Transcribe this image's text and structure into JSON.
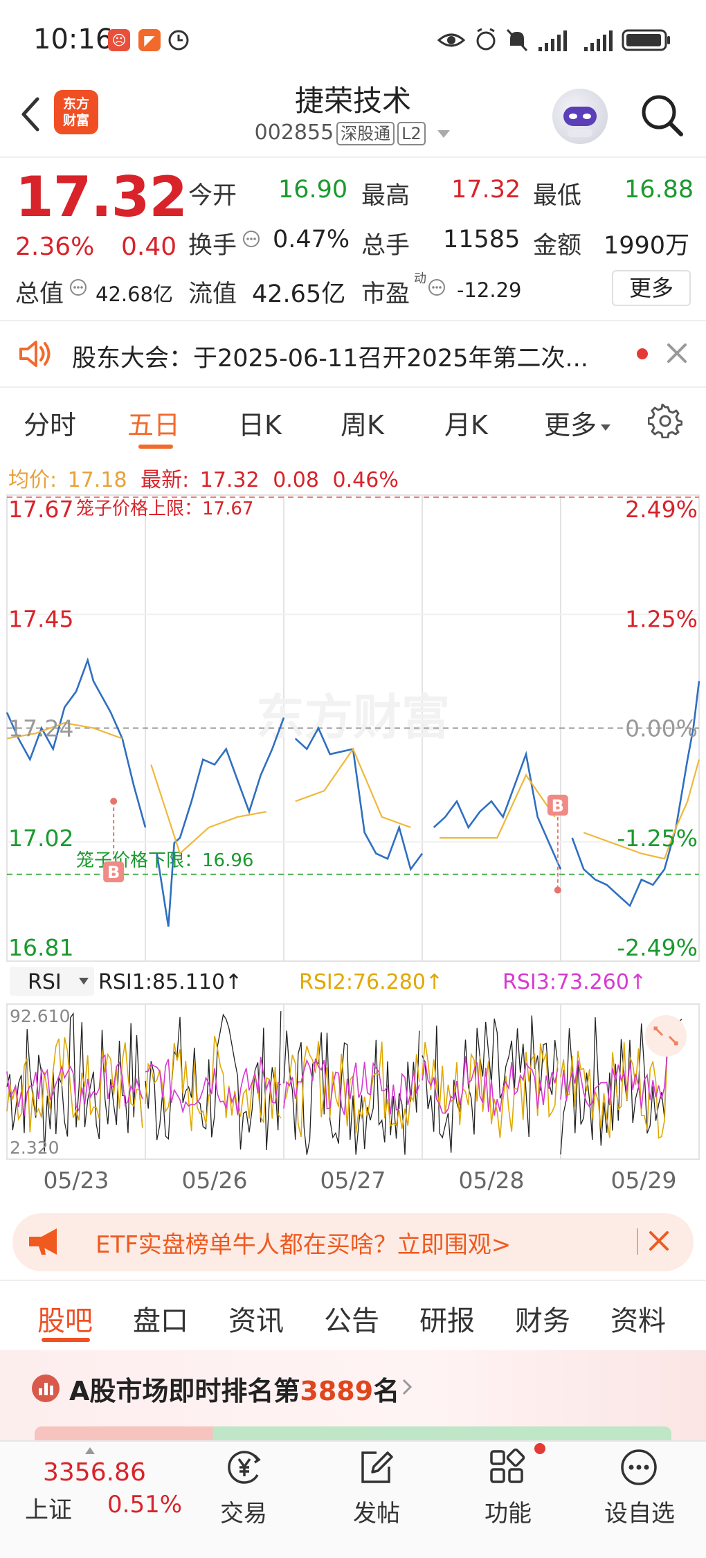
{
  "status_bar": {
    "time": "10:16",
    "icons": [
      "app-red-icon",
      "app-orange-icon",
      "app-clock-icon",
      "eye-icon",
      "alarm-icon",
      "mute-icon",
      "signal-icon",
      "signal2-icon",
      "battery-icon"
    ]
  },
  "header": {
    "brand_logo_line1": "东方",
    "brand_logo_line2": "财富",
    "stock_name": "捷荣技术",
    "stock_code": "002855",
    "tag_connect": "深股通",
    "tag_level": "L2"
  },
  "quote": {
    "price": "17.32",
    "change_pct": "2.36%",
    "change_amt": "0.40",
    "open_label": "今开",
    "open_value": "16.90",
    "high_label": "最高",
    "high_value": "17.32",
    "low_label": "最低",
    "low_value": "16.88",
    "turnover_label": "换手",
    "turnover_value": "0.47%",
    "volume_label": "总手",
    "volume_value": "11585",
    "amount_label": "金额",
    "amount_value": "1990万",
    "total_mv_label": "总值",
    "total_mv_value": "42.68亿",
    "float_mv_label": "流值",
    "float_mv_value": "42.65亿",
    "pe_label": "市盈",
    "pe_superscript": "动",
    "pe_value": "-12.29",
    "more_button": "更多"
  },
  "notice": {
    "text": "股东大会：于2025-06-11召开2025年第二次..."
  },
  "chart_tabs": [
    {
      "label": "分时"
    },
    {
      "label": "五日"
    },
    {
      "label": "日K"
    },
    {
      "label": "周K"
    },
    {
      "label": "月K"
    },
    {
      "label": "更多"
    }
  ],
  "avg_line": {
    "avg_label": "均价:",
    "avg_value": "17.18",
    "latest_label": "最新:",
    "latest_value": "17.32",
    "change": "0.08",
    "change_pct": "0.46%"
  },
  "chart_data": [
    {
      "type": "line",
      "title": "五日分时",
      "ylim": [
        16.81,
        17.67
      ],
      "y_ticks_left": [
        "17.67",
        "17.45",
        "17.24",
        "17.02",
        "16.81"
      ],
      "y_ticks_right": [
        "2.49%",
        "1.25%",
        "0.00%",
        "-1.25%",
        "-2.49%"
      ],
      "upper_limit_label": "笼子价格上限：17.67",
      "lower_limit_label": "笼子价格下限：16.96",
      "prev_close": 17.24,
      "watermark": "东方财富",
      "days": [
        "05/23",
        "05/26",
        "05/27",
        "05/28",
        "05/29"
      ],
      "series": [
        {
          "name": "price",
          "color": "#2f6fc0",
          "points": [
            [
              0,
              17.27
            ],
            [
              2,
              17.22
            ],
            [
              4,
              17.18
            ],
            [
              6,
              17.24
            ],
            [
              8,
              17.2
            ],
            [
              10,
              17.28
            ],
            [
              12,
              17.31
            ],
            [
              14,
              17.37
            ],
            [
              15,
              17.33
            ],
            [
              16,
              17.31
            ],
            [
              18,
              17.27
            ],
            [
              20,
              17.22
            ],
            [
              22,
              17.13
            ],
            [
              24,
              17.05
            ],
            [
              26,
              17.0
            ],
            [
              27,
              16.93
            ],
            [
              28,
              16.86
            ],
            [
              29,
              17.02
            ],
            [
              30,
              17.03
            ],
            [
              32,
              17.1
            ],
            [
              34,
              17.18
            ],
            [
              36,
              17.17
            ],
            [
              38,
              17.2
            ],
            [
              40,
              17.14
            ],
            [
              42,
              17.08
            ],
            [
              44,
              17.15
            ],
            [
              46,
              17.2
            ],
            [
              48,
              17.26
            ],
            [
              50,
              17.22
            ],
            [
              52,
              17.2
            ],
            [
              54,
              17.24
            ],
            [
              56,
              17.19
            ],
            [
              60,
              17.2
            ],
            [
              62,
              17.04
            ],
            [
              64,
              17.0
            ],
            [
              66,
              16.99
            ],
            [
              68,
              17.05
            ],
            [
              70,
              16.97
            ],
            [
              72,
              17.0
            ],
            [
              74,
              17.05
            ],
            [
              76,
              17.07
            ],
            [
              78,
              17.1
            ],
            [
              80,
              17.05
            ],
            [
              82,
              17.08
            ],
            [
              84,
              17.1
            ],
            [
              86,
              17.07
            ],
            [
              90,
              17.19
            ],
            [
              92,
              17.07
            ],
            [
              94,
              17.02
            ],
            [
              96,
              16.97
            ],
            [
              98,
              17.03
            ],
            [
              100,
              16.97
            ],
            [
              102,
              16.95
            ],
            [
              104,
              16.94
            ],
            [
              106,
              16.92
            ],
            [
              108,
              16.9
            ],
            [
              110,
              16.95
            ],
            [
              112,
              16.94
            ],
            [
              114,
              16.97
            ],
            [
              116,
              17.05
            ],
            [
              118,
              17.18
            ],
            [
              119,
              17.24
            ],
            [
              120,
              17.33
            ]
          ]
        },
        {
          "name": "avg",
          "color": "#f0b73a",
          "points": [
            [
              0,
              17.22
            ],
            [
              5,
              17.23
            ],
            [
              10,
              17.25
            ],
            [
              15,
              17.24
            ],
            [
              20,
              17.22
            ],
            [
              25,
              17.17
            ],
            [
              30,
              17.0
            ],
            [
              35,
              17.05
            ],
            [
              40,
              17.07
            ],
            [
              45,
              17.08
            ],
            [
              50,
              17.1
            ],
            [
              55,
              17.12
            ],
            [
              60,
              17.2
            ],
            [
              65,
              17.07
            ],
            [
              70,
              17.05
            ],
            [
              75,
              17.03
            ],
            [
              80,
              17.03
            ],
            [
              85,
              17.03
            ],
            [
              90,
              17.15
            ],
            [
              95,
              17.07
            ],
            [
              100,
              17.04
            ],
            [
              105,
              17.02
            ],
            [
              110,
              17.0
            ],
            [
              114,
              16.99
            ],
            [
              116,
              17.05
            ],
            [
              118,
              17.1
            ],
            [
              120,
              17.18
            ]
          ]
        }
      ],
      "annotations": [
        {
          "label": "B",
          "day_index": 0
        },
        {
          "label": "B",
          "day_index": 3
        }
      ]
    },
    {
      "type": "line",
      "title": "RSI",
      "indicator_select": "RSI",
      "ylim": [
        2.32,
        92.61
      ],
      "y_ticks": [
        "92.610",
        "2.320"
      ],
      "series": [
        {
          "name": "RSI1",
          "label": "RSI1:85.110↑",
          "color": "#222222",
          "last": 85.11
        },
        {
          "name": "RSI2",
          "label": "RSI2:76.280↑",
          "color": "#e0a800",
          "last": 76.28
        },
        {
          "name": "RSI3",
          "label": "RSI3:73.260↑",
          "color": "#d63ad0",
          "last": 73.26
        }
      ]
    }
  ],
  "etf_banner": {
    "text": "ETF实盘榜单牛人都在买啥？立即围观>"
  },
  "bottom_tabs": [
    {
      "label": "股吧"
    },
    {
      "label": "盘口"
    },
    {
      "label": "资讯"
    },
    {
      "label": "公告"
    },
    {
      "label": "研报"
    },
    {
      "label": "财务"
    },
    {
      "label": "资料"
    }
  ],
  "rank": {
    "prefix": "A股市场即时排名第",
    "number": "3889",
    "suffix": "名"
  },
  "bottom_nav": {
    "index_value": "3356.86",
    "index_name": "上证",
    "index_pct": "0.51%",
    "items": [
      {
        "label": "交易",
        "icon": "yen-icon"
      },
      {
        "label": "发帖",
        "icon": "edit-icon"
      },
      {
        "label": "功能",
        "icon": "grid-icon"
      },
      {
        "label": "设自选",
        "icon": "more-icon"
      }
    ]
  }
}
